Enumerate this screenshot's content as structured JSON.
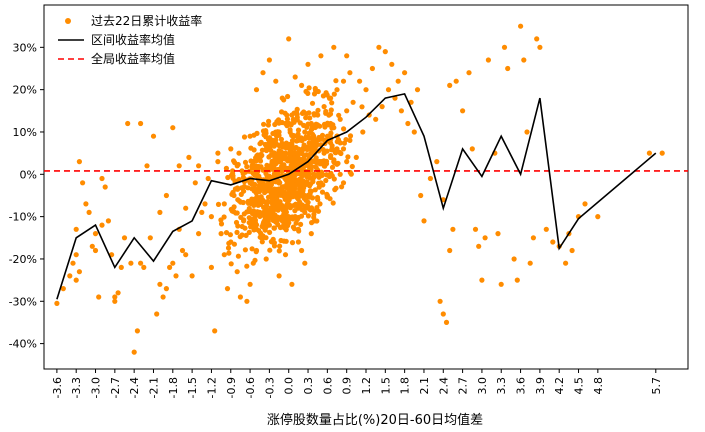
{
  "chart_data": {
    "type": "scatter",
    "xlabel": "涨停股数量占比(%)20日-60日均值差",
    "ylabel": "",
    "xlim": [
      -3.8,
      6.2
    ],
    "ylim": [
      -46,
      40
    ],
    "x_ticks": [
      -3.6,
      -3.3,
      -3.0,
      -2.7,
      -2.4,
      -2.1,
      -1.8,
      -1.5,
      -1.2,
      -0.9,
      -0.6,
      -0.3,
      0.0,
      0.3,
      0.6,
      0.9,
      1.2,
      1.5,
      1.8,
      2.1,
      2.4,
      2.7,
      3.0,
      3.3,
      3.6,
      3.9,
      4.2,
      4.5,
      4.8,
      5.7
    ],
    "x_tick_labels": [
      "-3.6",
      "-3.3",
      "-3.0",
      "-2.7",
      "-2.4",
      "-2.1",
      "-1.8",
      "-1.5",
      "-1.2",
      "-0.9",
      "-0.6",
      "-0.3",
      "0.0",
      "0.3",
      "0.6",
      "0.9",
      "1.2",
      "1.5",
      "1.8",
      "2.1",
      "2.4",
      "2.7",
      "3.0",
      "3.3",
      "3.6",
      "3.9",
      "4.2",
      "4.5",
      "4.8",
      "5.7"
    ],
    "y_ticks": [
      -40,
      -30,
      -20,
      -10,
      0,
      10,
      20,
      30
    ],
    "y_tick_labels": [
      "-40%",
      "-30%",
      "-20%",
      "-10%",
      "0%",
      "10%",
      "20%",
      "30%"
    ],
    "legend": {
      "position": "top-left",
      "entries": [
        "过去22日累计收益率",
        "区间收益率均值",
        "全局收益率均值"
      ]
    },
    "colors": {
      "scatter": "#ff8c00",
      "mean_line": "#000000",
      "global_mean": "#ff0000"
    },
    "series": [
      {
        "name": "过去22日累计收益率",
        "kind": "scatter",
        "points": [
          [
            -3.6,
            -30.5
          ],
          [
            -3.5,
            -27
          ],
          [
            -3.4,
            -24
          ],
          [
            -3.35,
            -21
          ],
          [
            -3.3,
            -25
          ],
          [
            -3.3,
            -19
          ],
          [
            -3.25,
            -23
          ],
          [
            -3.3,
            -13
          ],
          [
            -3.25,
            3
          ],
          [
            -3.2,
            -2
          ],
          [
            -3.15,
            -7
          ],
          [
            -3.1,
            -9
          ],
          [
            -3.05,
            -17
          ],
          [
            -3.0,
            -14
          ],
          [
            -3.0,
            -18
          ],
          [
            -2.95,
            -29
          ],
          [
            -2.9,
            -1
          ],
          [
            -2.85,
            -3
          ],
          [
            -2.9,
            -12
          ],
          [
            -2.8,
            -11
          ],
          [
            -2.75,
            -19
          ],
          [
            -2.7,
            -30
          ],
          [
            -2.65,
            -28
          ],
          [
            -2.7,
            -29
          ],
          [
            -2.6,
            -22
          ],
          [
            -2.55,
            -15
          ],
          [
            -2.5,
            12
          ],
          [
            -2.45,
            -21
          ],
          [
            -2.4,
            -42
          ],
          [
            -2.35,
            -37
          ],
          [
            -2.3,
            -21
          ],
          [
            -2.3,
            12
          ],
          [
            -2.25,
            -22
          ],
          [
            -2.2,
            2
          ],
          [
            -2.15,
            -15
          ],
          [
            -2.1,
            9
          ],
          [
            -2.05,
            -33
          ],
          [
            -2.0,
            -26
          ],
          [
            -1.95,
            -29
          ],
          [
            -2.0,
            -9
          ],
          [
            -1.9,
            -27
          ],
          [
            -1.85,
            -22
          ],
          [
            -1.8,
            -21
          ],
          [
            -1.8,
            11
          ],
          [
            -1.75,
            -24
          ],
          [
            -1.7,
            -13
          ],
          [
            -1.65,
            -18
          ],
          [
            -1.6,
            -19
          ],
          [
            -1.55,
            4
          ],
          [
            -1.5,
            -24
          ],
          [
            -1.45,
            -2
          ],
          [
            -1.4,
            2
          ],
          [
            -1.35,
            -9
          ],
          [
            -1.3,
            -7
          ],
          [
            -1.25,
            -1
          ],
          [
            -1.2,
            -22
          ],
          [
            -1.15,
            -37
          ],
          [
            -1.1,
            3
          ],
          [
            -1.05,
            -14
          ],
          [
            -1.0,
            -19
          ],
          [
            -0.95,
            -27
          ],
          [
            -0.9,
            -16
          ],
          [
            -0.85,
            -5
          ],
          [
            -0.8,
            -23
          ],
          [
            -0.75,
            -29
          ],
          [
            -0.7,
            -11
          ],
          [
            -0.65,
            -30
          ],
          [
            -0.6,
            -26
          ],
          [
            -0.55,
            -21
          ],
          [
            -0.5,
            -18
          ],
          [
            -0.45,
            -9
          ],
          [
            -0.4,
            -15
          ],
          [
            -0.35,
            -4
          ],
          [
            -0.3,
            -12
          ],
          [
            -0.25,
            -1
          ],
          [
            -0.2,
            -7
          ],
          [
            -0.15,
            3
          ],
          [
            -0.1,
            -3
          ],
          [
            -0.05,
            5
          ],
          [
            0.0,
            -2
          ],
          [
            0.05,
            6
          ],
          [
            0.1,
            -5
          ],
          [
            0.15,
            8
          ],
          [
            0.2,
            0
          ],
          [
            0.25,
            10
          ],
          [
            0.3,
            3
          ],
          [
            0.35,
            12
          ],
          [
            0.4,
            5
          ],
          [
            0.45,
            14
          ],
          [
            0.5,
            7
          ],
          [
            0.55,
            16
          ],
          [
            0.6,
            9
          ],
          [
            0.65,
            18
          ],
          [
            0.7,
            11
          ],
          [
            0.75,
            20
          ],
          [
            0.8,
            13
          ],
          [
            0.85,
            22
          ],
          [
            0.9,
            15
          ],
          [
            0.95,
            24
          ],
          [
            1.0,
            17
          ],
          [
            -0.5,
            20
          ],
          [
            -0.4,
            24
          ],
          [
            -0.3,
            27
          ],
          [
            -0.2,
            22
          ],
          [
            -0.1,
            18
          ],
          [
            0.0,
            32
          ],
          [
            0.1,
            23
          ],
          [
            0.2,
            21
          ],
          [
            0.3,
            26
          ],
          [
            0.4,
            19
          ],
          [
            0.5,
            28
          ],
          [
            0.7,
            30
          ],
          [
            0.9,
            28
          ],
          [
            1.1,
            22
          ],
          [
            1.2,
            20
          ],
          [
            1.3,
            25
          ],
          [
            1.4,
            30
          ],
          [
            1.5,
            29
          ],
          [
            1.6,
            26
          ],
          [
            1.7,
            22
          ],
          [
            1.8,
            24
          ],
          [
            1.9,
            17
          ],
          [
            2.0,
            20
          ],
          [
            2.05,
            -5
          ],
          [
            2.1,
            -11
          ],
          [
            2.2,
            -1
          ],
          [
            2.3,
            3
          ],
          [
            2.35,
            -30
          ],
          [
            2.4,
            -33
          ],
          [
            2.45,
            -35
          ],
          [
            2.5,
            -18
          ],
          [
            2.55,
            -13
          ],
          [
            2.4,
            -6
          ],
          [
            2.5,
            21
          ],
          [
            2.6,
            22
          ],
          [
            2.7,
            15
          ],
          [
            2.8,
            24
          ],
          [
            2.85,
            6
          ],
          [
            2.9,
            -13
          ],
          [
            2.95,
            -17
          ],
          [
            3.0,
            -25
          ],
          [
            3.05,
            -15
          ],
          [
            3.1,
            27
          ],
          [
            3.2,
            5
          ],
          [
            3.25,
            -14
          ],
          [
            3.3,
            -26
          ],
          [
            3.35,
            30
          ],
          [
            3.4,
            25
          ],
          [
            3.5,
            -20
          ],
          [
            3.55,
            -25
          ],
          [
            3.6,
            35
          ],
          [
            3.65,
            27
          ],
          [
            3.7,
            10
          ],
          [
            3.75,
            -21
          ],
          [
            3.8,
            -15
          ],
          [
            3.85,
            32
          ],
          [
            3.9,
            30
          ],
          [
            4.0,
            -13
          ],
          [
            4.1,
            -16
          ],
          [
            4.2,
            -17
          ],
          [
            4.3,
            -21
          ],
          [
            4.35,
            -14
          ],
          [
            4.4,
            -18
          ],
          [
            4.5,
            -10
          ],
          [
            4.6,
            -7
          ],
          [
            4.8,
            -10
          ],
          [
            5.6,
            5
          ],
          [
            5.8,
            5
          ],
          [
            -1.9,
            -5
          ],
          [
            -1.7,
            2
          ],
          [
            -1.6,
            -8
          ],
          [
            -1.4,
            -14
          ],
          [
            -1.2,
            -10
          ],
          [
            -1.1,
            5
          ],
          [
            -1.0,
            -7
          ],
          [
            -0.9,
            6
          ],
          [
            -0.8,
            2
          ],
          [
            -0.7,
            -4
          ],
          [
            -0.6,
            9
          ],
          [
            -0.5,
            -13
          ],
          [
            -0.45,
            4
          ],
          [
            -0.35,
            -20
          ],
          [
            -0.25,
            -16
          ],
          [
            -0.15,
            -24
          ],
          [
            -0.05,
            -19
          ],
          [
            0.05,
            -26
          ],
          [
            0.15,
            -13
          ],
          [
            0.25,
            -9
          ],
          [
            0.35,
            -4
          ],
          [
            0.45,
            1
          ],
          [
            0.55,
            2
          ],
          [
            0.65,
            4
          ],
          [
            0.75,
            6
          ],
          [
            0.85,
            -2
          ],
          [
            0.95,
            8
          ],
          [
            1.05,
            4
          ],
          [
            1.15,
            10
          ],
          [
            1.25,
            14
          ],
          [
            1.35,
            13
          ],
          [
            1.45,
            16
          ],
          [
            1.55,
            20
          ],
          [
            1.65,
            18
          ],
          [
            1.75,
            15
          ],
          [
            1.85,
            12
          ],
          [
            1.95,
            10
          ],
          [
            -0.6,
            -2
          ],
          [
            -0.55,
            3
          ],
          [
            -0.45,
            -6
          ],
          [
            -0.4,
            1
          ],
          [
            -0.35,
            6
          ],
          [
            -0.3,
            -3
          ],
          [
            -0.25,
            8
          ],
          [
            -0.2,
            -8
          ],
          [
            -0.15,
            10
          ],
          [
            -0.1,
            -11
          ],
          [
            -0.05,
            12
          ],
          [
            0.0,
            -6
          ],
          [
            0.05,
            14
          ],
          [
            0.1,
            -10
          ],
          [
            0.15,
            -16
          ],
          [
            0.2,
            -18
          ],
          [
            0.25,
            -21
          ],
          [
            0.3,
            -8
          ],
          [
            0.35,
            -14
          ],
          [
            0.4,
            -11
          ],
          [
            0.45,
            -6
          ],
          [
            0.5,
            -2
          ],
          [
            0.55,
            5
          ],
          [
            0.6,
            -5
          ],
          [
            0.65,
            12
          ],
          [
            0.7,
            3
          ],
          [
            0.75,
            9
          ],
          [
            0.8,
            0
          ],
          [
            0.85,
            6
          ],
          [
            0.9,
            3
          ]
        ]
      },
      {
        "name": "区间收益率均值",
        "kind": "line",
        "points": [
          [
            -3.6,
            -29.5
          ],
          [
            -3.3,
            -15
          ],
          [
            -3.0,
            -12
          ],
          [
            -2.7,
            -22
          ],
          [
            -2.4,
            -15
          ],
          [
            -2.1,
            -20.5
          ],
          [
            -1.8,
            -13.5
          ],
          [
            -1.5,
            -11
          ],
          [
            -1.2,
            -1.5
          ],
          [
            -0.9,
            -2.5
          ],
          [
            -0.6,
            -1
          ],
          [
            -0.3,
            -1.5
          ],
          [
            0.0,
            0
          ],
          [
            0.3,
            3
          ],
          [
            0.6,
            8
          ],
          [
            0.9,
            10
          ],
          [
            1.2,
            13.5
          ],
          [
            1.5,
            18
          ],
          [
            1.8,
            19
          ],
          [
            2.1,
            9
          ],
          [
            2.4,
            -8
          ],
          [
            2.7,
            6
          ],
          [
            3.0,
            -0.5
          ],
          [
            3.3,
            9
          ],
          [
            3.6,
            0
          ],
          [
            3.9,
            18
          ],
          [
            4.2,
            -17.5
          ],
          [
            4.5,
            -10.5
          ],
          [
            5.7,
            5
          ]
        ]
      },
      {
        "name": "全局收益率均值",
        "kind": "hline",
        "y": 0.8
      }
    ]
  }
}
